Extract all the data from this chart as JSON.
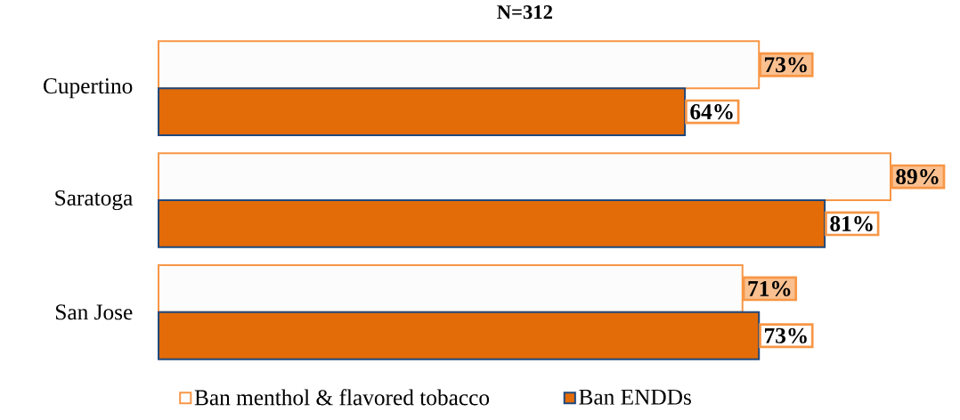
{
  "chart_data": {
    "type": "bar",
    "orientation": "horizontal",
    "title": "N=312",
    "categories": [
      "Cupertino",
      "Saratoga",
      "San Jose"
    ],
    "series": [
      {
        "name": "Ban menthol & flavored tobacco",
        "color": "#fcfcfc",
        "values": [
          73,
          89,
          71
        ],
        "value_labels": [
          "73%",
          "89%",
          "71%"
        ]
      },
      {
        "name": "Ban ENDDs",
        "color": "#e36c09",
        "values": [
          64,
          81,
          73
        ],
        "value_labels": [
          "64%",
          "81%",
          "73%"
        ]
      }
    ],
    "legend": "bottom"
  }
}
